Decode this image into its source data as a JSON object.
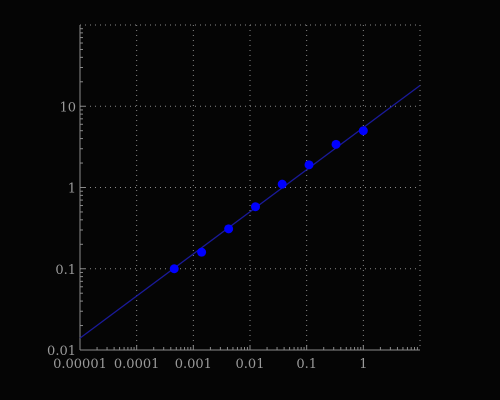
{
  "chart_data": {
    "type": "scatter",
    "title": "",
    "xlabel": "",
    "ylabel": "",
    "x_scale": "log",
    "y_scale": "log",
    "xlim": [
      1e-05,
      10
    ],
    "ylim": [
      0.01,
      100
    ],
    "grid": true,
    "x_ticks": [
      "0.00001",
      "0.0001",
      "0.001",
      "0.01",
      "0.1",
      "1"
    ],
    "y_ticks": [
      "0.01",
      "0.1",
      "1",
      "10"
    ],
    "x_tick_values": [
      1e-05,
      0.0001,
      0.001,
      0.01,
      0.1,
      1
    ],
    "y_tick_values": [
      0.01,
      0.1,
      1,
      10
    ],
    "series": [
      {
        "type": "scatter",
        "color": "#0000ff",
        "points": [
          {
            "x": 0.00046,
            "y": 0.1
          },
          {
            "x": 0.0014,
            "y": 0.16
          },
          {
            "x": 0.0042,
            "y": 0.31
          },
          {
            "x": 0.0125,
            "y": 0.58
          },
          {
            "x": 0.037,
            "y": 1.1
          },
          {
            "x": 0.11,
            "y": 1.9
          },
          {
            "x": 0.33,
            "y": 3.4
          },
          {
            "x": 1.0,
            "y": 5.0
          }
        ]
      },
      {
        "type": "line",
        "color": "#1a1a99",
        "points": [
          {
            "x": 1e-05,
            "y": 0.014
          },
          {
            "x": 10,
            "y": 18
          }
        ]
      }
    ]
  }
}
